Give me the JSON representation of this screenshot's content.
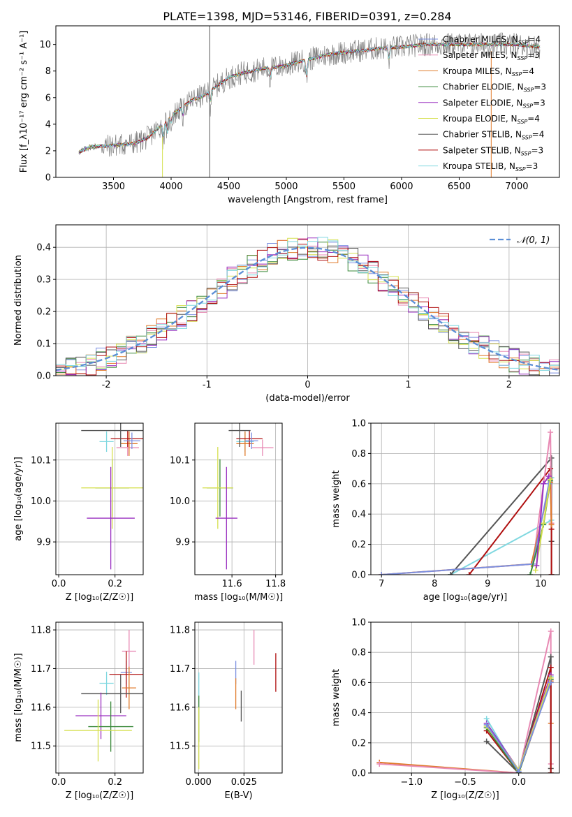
{
  "figure_title": "PLATE=1398, MJD=53146, FIBERID=0391, z=0.284",
  "styles": {
    "colors": {
      "Chabrier MILES": "#7b8fe0",
      "Salpeter MILES": "#e88ab4",
      "Kroupa MILES": "#e07b2b",
      "Chabrier ELODIE": "#3a8a3a",
      "Salpeter ELODIE": "#9a30c0",
      "Kroupa ELODIE": "#d6e050",
      "Chabrier STELIB": "#555555",
      "Salpeter STELIB": "#b01010",
      "Kroupa STELIB": "#80d8e0"
    },
    "gaussian_color": "#5b8ed6",
    "grid_color": "#b0b0b0",
    "data_spectrum_color": "#808080"
  },
  "chart_data": [
    {
      "id": "spectrum",
      "type": "line",
      "xlabel": "wavelength [Angstrom, rest frame]",
      "ylabel": "Flux [f_λ10⁻¹⁷ erg cm⁻² s⁻¹ A⁻¹]",
      "xlim": [
        3000,
        7370
      ],
      "ylim": [
        0,
        11.4
      ],
      "grid": false,
      "legend_position": "upper-right",
      "x_ticks": [
        3500,
        4000,
        4500,
        5000,
        5500,
        6000,
        6500,
        7000
      ],
      "y_ticks": [
        0,
        2,
        4,
        6,
        8,
        10
      ],
      "legend": [
        {
          "model": "Chabrier MILES",
          "n": "4"
        },
        {
          "model": "Salpeter MILES",
          "n": "3"
        },
        {
          "model": "Kroupa MILES",
          "n": "4"
        },
        {
          "model": "Chabrier ELODIE",
          "n": "3"
        },
        {
          "model": "Salpeter ELODIE",
          "n": "3"
        },
        {
          "model": "Kroupa ELODIE",
          "n": "4"
        },
        {
          "model": "Chabrier STELIB",
          "n": "4"
        },
        {
          "model": "Salpeter STELIB",
          "n": "3"
        },
        {
          "model": "Kroupa STELIB",
          "n": "3"
        }
      ],
      "continuum": {
        "x": [
          3200,
          3300,
          3500,
          3700,
          3800,
          3900,
          3950,
          4000,
          4100,
          4200,
          4300,
          4400,
          4500,
          4600,
          4700,
          4800,
          4900,
          5000,
          5100,
          5200,
          5300,
          5400,
          5500,
          5600,
          5700,
          5800,
          5900,
          6000,
          6100,
          6200,
          6300,
          6400,
          6500,
          6600,
          6700,
          6800,
          6900,
          7000,
          7100,
          7200
        ],
        "y": [
          1.9,
          2.3,
          2.4,
          2.6,
          3.0,
          3.8,
          4.2,
          4.6,
          5.3,
          5.9,
          6.2,
          6.9,
          7.5,
          7.8,
          8.0,
          8.2,
          8.3,
          8.4,
          8.7,
          8.9,
          9.1,
          9.3,
          9.4,
          9.5,
          9.6,
          9.7,
          9.75,
          9.8,
          9.9,
          10.0,
          10.0,
          10.0,
          10.0,
          10.0,
          10.0,
          10.0,
          10.0,
          10.0,
          9.9,
          9.8
        ]
      },
      "model_xrange": [
        3200,
        7200
      ],
      "data_noise_amplitude": 0.9
    },
    {
      "id": "residual_hist",
      "type": "bar",
      "xlabel": "(data-model)/error",
      "ylabel": "Normed distribution",
      "xlim": [
        -2.5,
        2.5
      ],
      "ylim": [
        0,
        0.47
      ],
      "grid": true,
      "x_ticks": [
        -2,
        -1,
        0,
        1,
        2
      ],
      "y_ticks": [
        0.0,
        0.1,
        0.2,
        0.3,
        0.4
      ],
      "legend_label": "𝒩(0, 1)",
      "legend_position": "upper-right",
      "bin_width": 0.1,
      "bin_start": -2.5,
      "n_bins": 50,
      "gaussian": {
        "mean": 0,
        "sigma": 1
      }
    },
    {
      "id": "age_vs_Z",
      "type": "scatter",
      "xlabel": "Z [log₁₀(Z/Z☉)]",
      "ylabel": "age  [log₁₀(age/yr)]",
      "xlim": [
        -0.01,
        0.3
      ],
      "ylim": [
        9.82,
        10.19
      ],
      "grid": true,
      "x_ticks": [
        0.0,
        0.2
      ],
      "y_ticks": [
        9.9,
        10.0,
        10.1
      ],
      "points": [
        {
          "model": "Kroupa STELIB",
          "x": 0.17,
          "y": 10.145,
          "xerr": 0.025,
          "yerr": 0.025
        },
        {
          "model": "Salpeter MILES",
          "x": 0.245,
          "y": 10.13,
          "xerr": 0.04,
          "yerr": 0.02
        },
        {
          "model": "Kroupa MILES",
          "x": 0.25,
          "y": 10.14,
          "xerr": 0.03,
          "yerr": 0.03
        },
        {
          "model": "Salpeter STELIB",
          "x": 0.245,
          "y": 10.152,
          "xerr": 0.06,
          "yerr": 0.02
        },
        {
          "model": "Chabrier STELIB",
          "x": 0.22,
          "y": 10.172,
          "xerr": 0.14,
          "yerr": 0.04
        },
        {
          "model": "Chabrier MILES",
          "x": 0.26,
          "y": 10.147,
          "xerr": 0.03,
          "yerr": 0.02
        },
        {
          "model": "Chabrier ELODIE",
          "x": 0.19,
          "y": 10.032,
          "xerr": 0.06,
          "yerr": 0.07
        },
        {
          "model": "Kroupa ELODIE",
          "x": 0.19,
          "y": 10.032,
          "xerr": 0.11,
          "yerr": 0.1
        },
        {
          "model": "Salpeter ELODIE",
          "x": 0.185,
          "y": 9.958,
          "xerr": 0.085,
          "yerr": 0.125
        }
      ]
    },
    {
      "id": "age_vs_mass",
      "type": "scatter",
      "xlabel": "mass [log₁₀(M/M☉)]",
      "ylabel": "",
      "xlim": [
        11.43,
        11.83
      ],
      "ylim": [
        9.82,
        10.19
      ],
      "grid": true,
      "x_ticks": [
        11.6,
        11.8
      ],
      "y_ticks": [
        9.9,
        10.0,
        10.1
      ],
      "points": [
        {
          "model": "Kroupa STELIB",
          "x": 11.66,
          "y": 10.145,
          "xerr": 0.04,
          "yerr": 0.025
        },
        {
          "model": "Salpeter MILES",
          "x": 11.74,
          "y": 10.13,
          "xerr": 0.05,
          "yerr": 0.02
        },
        {
          "model": "Kroupa MILES",
          "x": 11.66,
          "y": 10.14,
          "xerr": 0.04,
          "yerr": 0.03
        },
        {
          "model": "Salpeter STELIB",
          "x": 11.68,
          "y": 10.152,
          "xerr": 0.06,
          "yerr": 0.02
        },
        {
          "model": "Chabrier STELIB",
          "x": 11.635,
          "y": 10.172,
          "xerr": 0.05,
          "yerr": 0.04
        },
        {
          "model": "Chabrier MILES",
          "x": 11.69,
          "y": 10.147,
          "xerr": 0.03,
          "yerr": 0.02
        },
        {
          "model": "Chabrier ELODIE",
          "x": 11.545,
          "y": 10.032,
          "xerr": 0.06,
          "yerr": 0.07
        },
        {
          "model": "Kroupa ELODIE",
          "x": 11.535,
          "y": 10.032,
          "xerr": 0.07,
          "yerr": 0.1
        },
        {
          "model": "Salpeter ELODIE",
          "x": 11.575,
          "y": 9.958,
          "xerr": 0.05,
          "yerr": 0.125
        }
      ]
    },
    {
      "id": "mass_weight_vs_age",
      "type": "line",
      "xlabel": "age  [log₁₀(age/yr)]",
      "ylabel": "mass weight",
      "xlim": [
        6.8,
        10.35
      ],
      "ylim": [
        0,
        1.0
      ],
      "grid": true,
      "x_ticks": [
        7,
        8,
        9,
        10
      ],
      "y_ticks": [
        0.0,
        0.2,
        0.4,
        0.6,
        0.8,
        1.0
      ],
      "series": [
        {
          "model": "Kroupa STELIB",
          "x": [
            8.3,
            10.2,
            10.2
          ],
          "y": [
            0.0,
            0.36,
            0.64
          ]
        },
        {
          "model": "Chabrier STELIB",
          "x": [
            8.3,
            10.2,
            10.2,
            10.2
          ],
          "y": [
            0.0,
            0.77,
            0.22,
            0.0
          ]
        },
        {
          "model": "Salpeter STELIB",
          "x": [
            8.65,
            10.18,
            10.2,
            10.2
          ],
          "y": [
            0.0,
            0.7,
            0.3,
            0.0
          ]
        },
        {
          "model": "Salpeter MILES",
          "x": [
            7.0,
            9.85,
            10.18,
            10.2
          ],
          "y": [
            0.0,
            0.07,
            0.94,
            0.34
          ]
        },
        {
          "model": "Kroupa MILES",
          "x": [
            7.0,
            9.82,
            10.18,
            10.2
          ],
          "y": [
            0.0,
            0.07,
            0.61,
            0.33
          ]
        },
        {
          "model": "Chabrier MILES",
          "x": [
            7.0,
            9.85,
            10.15
          ],
          "y": [
            0.0,
            0.07,
            0.6
          ]
        },
        {
          "model": "Chabrier ELODIE",
          "x": [
            9.8,
            10.05,
            10.18
          ],
          "y": [
            0.0,
            0.33,
            0.62
          ]
        },
        {
          "model": "Kroupa ELODIE",
          "x": [
            9.9,
            10.05,
            10.18
          ],
          "y": [
            0.03,
            0.34,
            0.63
          ]
        },
        {
          "model": "Salpeter ELODIE",
          "x": [
            9.92,
            10.05,
            10.15
          ],
          "y": [
            0.06,
            0.6,
            0.65
          ]
        }
      ]
    },
    {
      "id": "mass_vs_Z",
      "type": "scatter",
      "xlabel": "Z [log₁₀(Z/Z☉)]",
      "ylabel": "mass [log₁₀(M/M☉)]",
      "xlim": [
        -0.01,
        0.3
      ],
      "ylim": [
        11.43,
        11.82
      ],
      "grid": true,
      "x_ticks": [
        0.0,
        0.2
      ],
      "y_ticks": [
        11.5,
        11.6,
        11.7,
        11.8
      ],
      "points": [
        {
          "model": "Salpeter MILES",
          "x": 0.25,
          "y": 11.745,
          "xerr": 0.025,
          "yerr": 0.055
        },
        {
          "model": "Kroupa STELIB",
          "x": 0.17,
          "y": 11.662,
          "xerr": 0.025,
          "yerr": 0.03
        },
        {
          "model": "Chabrier MILES",
          "x": 0.24,
          "y": 11.69,
          "xerr": 0.02,
          "yerr": 0.03
        },
        {
          "model": "Salpeter STELIB",
          "x": 0.24,
          "y": 11.685,
          "xerr": 0.06,
          "yerr": 0.06
        },
        {
          "model": "Kroupa MILES",
          "x": 0.25,
          "y": 11.65,
          "xerr": 0.025,
          "yerr": 0.055
        },
        {
          "model": "Chabrier STELIB",
          "x": 0.22,
          "y": 11.635,
          "xerr": 0.14,
          "yerr": 0.05
        },
        {
          "model": "Salpeter ELODIE",
          "x": 0.15,
          "y": 11.578,
          "xerr": 0.09,
          "yerr": 0.06
        },
        {
          "model": "Chabrier ELODIE",
          "x": 0.185,
          "y": 11.55,
          "xerr": 0.08,
          "yerr": 0.065
        },
        {
          "model": "Kroupa ELODIE",
          "x": 0.14,
          "y": 11.54,
          "xerr": 0.12,
          "yerr": 0.08
        }
      ]
    },
    {
      "id": "mass_vs_ebv",
      "type": "scatter",
      "xlabel": "E(B-V)",
      "ylabel": "",
      "xlim": [
        -0.002,
        0.046
      ],
      "ylim": [
        11.43,
        11.82
      ],
      "grid": true,
      "x_ticks": [
        0.0,
        0.025
      ],
      "x_tick_labels": [
        "0.000",
        "0.025"
      ],
      "y_ticks": [
        11.5,
        11.6,
        11.7,
        11.8
      ],
      "points": [
        {
          "model": "Salpeter MILES",
          "x": 0.0305,
          "y": 11.755,
          "xerr": 0,
          "yerr": 0.045
        },
        {
          "model": "Chabrier MILES",
          "x": 0.0205,
          "y": 11.69,
          "xerr": 0,
          "yerr": 0.03
        },
        {
          "model": "Kroupa MILES",
          "x": 0.0205,
          "y": 11.635,
          "xerr": 0,
          "yerr": 0.04
        },
        {
          "model": "Chabrier STELIB",
          "x": 0.0235,
          "y": 11.603,
          "xerr": 0,
          "yerr": 0.04
        },
        {
          "model": "Salpeter STELIB",
          "x": 0.0425,
          "y": 11.69,
          "xerr": 0,
          "yerr": 0.05
        },
        {
          "model": "Kroupa STELIB",
          "x": 0.0002,
          "y": 11.66,
          "xerr": 0,
          "yerr": 0.03
        },
        {
          "model": "Chabrier ELODIE",
          "x": 0.0002,
          "y": 11.57,
          "xerr": 0,
          "yerr": 0.06
        },
        {
          "model": "Kroupa ELODIE",
          "x": 0.0002,
          "y": 11.52,
          "xerr": 0,
          "yerr": 0.08
        }
      ]
    },
    {
      "id": "mass_weight_vs_Z",
      "type": "line",
      "xlabel": "Z [log₁₀(Z/Z☉)]",
      "ylabel": "mass weight",
      "xlim": [
        -1.38,
        0.38
      ],
      "ylim": [
        0,
        1.0
      ],
      "grid": true,
      "x_ticks": [
        -1.0,
        -0.5,
        0.0
      ],
      "x_tick_labels": [
        "−1.0",
        "−0.5",
        "0.0"
      ],
      "y_ticks": [
        0.0,
        0.2,
        0.4,
        0.6,
        0.8,
        1.0
      ],
      "series": [
        {
          "model": "Kroupa MILES",
          "x": [
            -1.3,
            0.0,
            0.3,
            0.3
          ],
          "y": [
            0.07,
            0.0,
            0.61,
            0.33
          ]
        },
        {
          "model": "Salpeter MILES",
          "x": [
            -1.3,
            0.0,
            0.3,
            0.3
          ],
          "y": [
            0.06,
            0.0,
            0.94,
            0.06
          ]
        },
        {
          "model": "Kroupa STELIB",
          "x": [
            -0.3,
            0.0,
            0.3
          ],
          "y": [
            0.36,
            0.0,
            0.64
          ]
        },
        {
          "model": "Chabrier STELIB",
          "x": [
            -0.3,
            0.0,
            0.3,
            0.3,
            0.3
          ],
          "y": [
            0.21,
            0.0,
            0.77,
            0.03,
            0.0
          ]
        },
        {
          "model": "Salpeter STELIB",
          "x": [
            -0.3,
            0.0,
            0.3,
            0.3
          ],
          "y": [
            0.28,
            0.0,
            0.7,
            0.0
          ]
        },
        {
          "model": "Salpeter ELODIE",
          "x": [
            -0.3,
            0.0,
            0.3
          ],
          "y": [
            0.33,
            0.02,
            0.65
          ]
        },
        {
          "model": "Chabrier ELODIE",
          "x": [
            -0.3,
            0.0,
            0.3
          ],
          "y": [
            0.3,
            0.0,
            0.62
          ]
        },
        {
          "model": "Kroupa ELODIE",
          "x": [
            -0.3,
            0.0,
            0.3
          ],
          "y": [
            0.31,
            0.02,
            0.63
          ]
        },
        {
          "model": "Chabrier MILES",
          "x": [
            -0.3,
            0.0,
            0.3
          ],
          "y": [
            0.32,
            0.01,
            0.6
          ]
        }
      ]
    }
  ]
}
